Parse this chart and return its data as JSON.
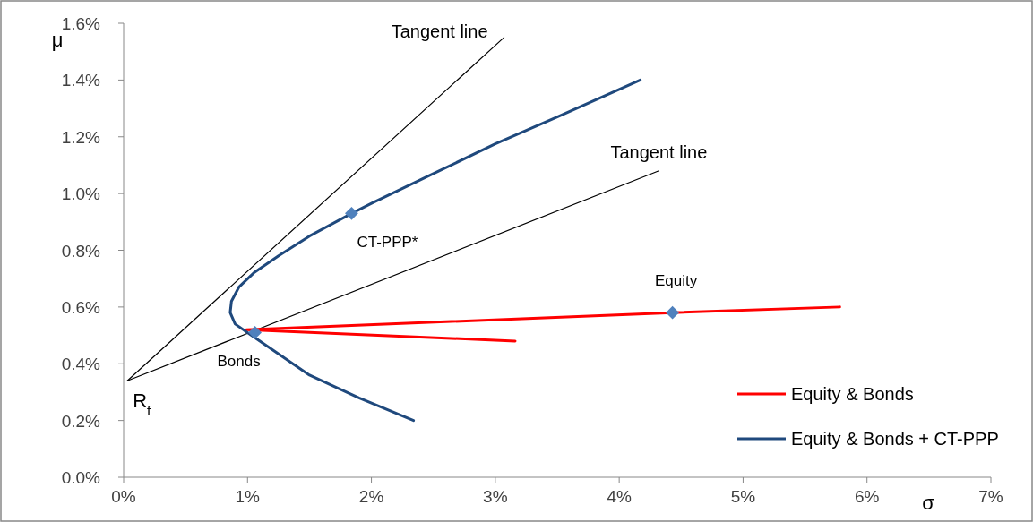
{
  "chart_data": {
    "type": "line",
    "xlabel": "σ",
    "ylabel": "μ",
    "xlim": [
      0,
      7
    ],
    "ylim": [
      0,
      1.6
    ],
    "xticks": [
      {
        "value": 0,
        "label": "0%"
      },
      {
        "value": 1,
        "label": "1%"
      },
      {
        "value": 2,
        "label": "2%"
      },
      {
        "value": 3,
        "label": "3%"
      },
      {
        "value": 4,
        "label": "4%"
      },
      {
        "value": 5,
        "label": "5%"
      },
      {
        "value": 6,
        "label": "6%"
      },
      {
        "value": 7,
        "label": "7%"
      }
    ],
    "yticks": [
      {
        "value": 0,
        "label": "0.0%"
      },
      {
        "value": 0.2,
        "label": "0.2%"
      },
      {
        "value": 0.4,
        "label": "0.4%"
      },
      {
        "value": 0.6,
        "label": "0.6%"
      },
      {
        "value": 0.8,
        "label": "0.8%"
      },
      {
        "value": 1.0,
        "label": "1.0%"
      },
      {
        "value": 1.2,
        "label": "1.2%"
      },
      {
        "value": 1.4,
        "label": "1.4%"
      },
      {
        "value": 1.6,
        "label": "1.6%"
      }
    ],
    "grid": false,
    "legend": "bottom right",
    "series": [
      {
        "color": "#000000",
        "x": [
          0.03,
          3.07
        ],
        "values": [
          0.34,
          1.55
        ]
      },
      {
        "color": "#000000",
        "x": [
          0.03,
          4.32
        ],
        "values": [
          0.34,
          1.08
        ]
      },
      {
        "name": "Equity & Bonds",
        "color": "#ff0000",
        "x": [
          3.16,
          0.99,
          4.43,
          5.78
        ],
        "values": [
          0.48,
          0.52,
          0.58,
          0.6
        ]
      },
      {
        "name": "Equity & Bonds + CT-PPP",
        "color": "#1f497d",
        "x": [
          4.17,
          3.5,
          3.0,
          2.5,
          2.0,
          1.84,
          1.5,
          1.25,
          1.05,
          0.93,
          0.87,
          0.86,
          0.9,
          1.0,
          1.2,
          1.5,
          1.9,
          2.34
        ],
        "values": [
          1.4,
          1.27,
          1.175,
          1.07,
          0.965,
          0.93,
          0.85,
          0.78,
          0.72,
          0.67,
          0.62,
          0.58,
          0.54,
          0.51,
          0.45,
          0.36,
          0.28,
          0.2
        ]
      },
      {
        "type": "scatter",
        "color": "#4f81bd",
        "marker": "diamond",
        "x": [
          1.84,
          1.06,
          4.43
        ],
        "values": [
          0.93,
          0.51,
          0.58
        ]
      }
    ],
    "annotations": [
      {
        "text": "Tangent line",
        "x": 3.07,
        "y": 1.55
      },
      {
        "text": "Tangent line",
        "x": 4.32,
        "y": 1.08
      },
      {
        "text": "CT-PPP*",
        "x": 1.84,
        "y": 0.93
      },
      {
        "text": "Equity",
        "x": 4.43,
        "y": 0.58
      },
      {
        "text": "Bonds",
        "x": 1.06,
        "y": 0.51
      },
      {
        "text": "R$_{f}$",
        "x": 0.03,
        "y": 0.34
      }
    ]
  }
}
